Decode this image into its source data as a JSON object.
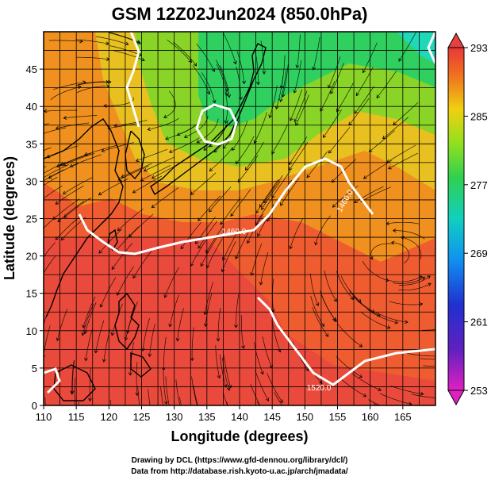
{
  "title": "GSM 12Z02Jun2024 (850.0hPa)",
  "x_axis": {
    "label": "Longitude (degrees)",
    "ticks": [
      "110",
      "115",
      "120",
      "125",
      "130",
      "135",
      "140",
      "145",
      "150",
      "155",
      "160",
      "165"
    ],
    "range": [
      110,
      170
    ]
  },
  "y_axis": {
    "label": "Latitude  (degrees)",
    "ticks": [
      "0",
      "5",
      "10",
      "15",
      "20",
      "25",
      "30",
      "35",
      "40",
      "45"
    ],
    "range": [
      0,
      50
    ]
  },
  "colorbar": {
    "ticks": [
      "293",
      "285",
      "277",
      "269",
      "261",
      "253"
    ],
    "range": [
      253,
      293
    ]
  },
  "contour_labels": [
    "1460.0",
    "1460.0",
    "1520.0"
  ],
  "credits": {
    "line1": "Drawing by DCL (https://www.gfd-dennou.org/library/dcl/)",
    "line2": "Data from http://database.rish.kyoto-u.ac.jp/arch/jmadata/"
  },
  "colors": {
    "warm": "#f05a28",
    "hot": "#e8463a",
    "mid": "#f0a020",
    "cool": "#7fd02a",
    "cold": "#22cc66",
    "coast": "#000000",
    "contour": "#ffffff"
  }
}
